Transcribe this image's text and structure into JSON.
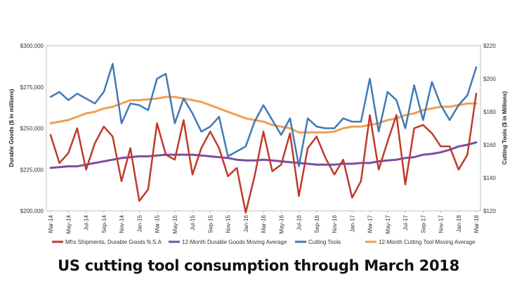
{
  "caption": "US cutting tool consumption through March 2018",
  "chart_data": {
    "type": "line",
    "x_labels": [
      "Mar-14",
      "May-14",
      "Jul-14",
      "Sep-14",
      "Nov-14",
      "Jan-15",
      "Mar-15",
      "May-15",
      "Jul-15",
      "Sep-15",
      "Nov-15",
      "Jan-16",
      "Mar-16",
      "May-16",
      "Jul-16",
      "Sep-16",
      "Nov-16",
      "Jan-17",
      "Mar-17",
      "May-17",
      "Jul-17",
      "Sep-17",
      "Nov-17",
      "Jan-18",
      "Mar-18"
    ],
    "months": [
      "Mar-14",
      "Apr-14",
      "May-14",
      "Jun-14",
      "Jul-14",
      "Aug-14",
      "Sep-14",
      "Oct-14",
      "Nov-14",
      "Dec-14",
      "Jan-15",
      "Feb-15",
      "Mar-15",
      "Apr-15",
      "May-15",
      "Jun-15",
      "Jul-15",
      "Aug-15",
      "Sep-15",
      "Oct-15",
      "Nov-15",
      "Dec-15",
      "Jan-16",
      "Feb-16",
      "Mar-16",
      "Apr-16",
      "May-16",
      "Jun-16",
      "Jul-16",
      "Aug-16",
      "Sep-16",
      "Oct-16",
      "Nov-16",
      "Dec-16",
      "Jan-17",
      "Feb-17",
      "Mar-17",
      "Apr-17",
      "May-17",
      "Jun-17",
      "Jul-17",
      "Aug-17",
      "Sep-17",
      "Oct-17",
      "Nov-17",
      "Dec-17",
      "Jan-18",
      "Feb-18",
      "Mar-18"
    ],
    "y_left": {
      "label": "Durable Goods ($ in millions)",
      "range": [
        200000,
        300000
      ],
      "ticks": [
        "$200,000",
        "$225,000",
        "$250,000",
        "$275,000",
        "$300,000"
      ]
    },
    "y_right": {
      "label": "Cutting Tools ($ in Millions)",
      "range": [
        120,
        220
      ],
      "ticks": [
        "$120",
        "$140",
        "$160",
        "$180",
        "$200",
        "$220"
      ]
    },
    "grid": false,
    "legend_position": "bottom",
    "series": [
      {
        "name": "Mfrs Shipments, Durable Goods N.S.A",
        "axis": "left",
        "color": "#c0392b",
        "values": [
          246000,
          229000,
          235000,
          250000,
          225000,
          241000,
          251000,
          245000,
          218000,
          238000,
          206000,
          213000,
          253000,
          234000,
          231000,
          255000,
          222000,
          238000,
          248000,
          238000,
          221000,
          226000,
          199000,
          221000,
          248000,
          224000,
          228000,
          247000,
          209000,
          238000,
          245000,
          232000,
          222000,
          231000,
          208000,
          218000,
          258000,
          225000,
          242000,
          258000,
          216000,
          250000,
          252000,
          247000,
          239000,
          239000,
          225000,
          234000,
          271000
        ]
      },
      {
        "name": "12-Month Durable Goods Moving Average",
        "axis": "left",
        "color": "#7b4fa0",
        "values": [
          226000,
          226500,
          227000,
          227000,
          228000,
          229000,
          230000,
          231000,
          232000,
          232500,
          233000,
          233000,
          233500,
          234000,
          234000,
          234000,
          234000,
          233500,
          233000,
          232500,
          232000,
          231000,
          230500,
          230500,
          231000,
          230500,
          230000,
          229500,
          229000,
          228500,
          228000,
          228000,
          228000,
          228500,
          228500,
          229000,
          229000,
          230000,
          230500,
          231000,
          232000,
          232500,
          234000,
          234500,
          235500,
          237000,
          239000,
          240000,
          241500
        ]
      },
      {
        "name": "Cutting Tools",
        "axis": "right",
        "color": "#3f7ab5",
        "values": [
          189,
          192,
          187,
          191,
          188,
          185,
          192,
          209,
          173,
          185,
          184,
          181,
          200,
          203,
          173,
          188,
          179,
          168,
          171,
          177,
          153,
          156,
          159,
          174,
          184,
          175,
          166,
          176,
          147,
          176,
          171,
          170,
          170,
          176,
          174,
          174,
          200,
          168,
          192,
          187,
          170,
          196,
          175,
          198,
          184,
          175,
          184,
          190,
          207
        ]
      },
      {
        "name": "12-Month Cutting Tool Moving Average",
        "axis": "right",
        "color": "#f0a050",
        "values": [
          173,
          174,
          175,
          177,
          179,
          180,
          182,
          183,
          185,
          187,
          187,
          187.5,
          188,
          189,
          189,
          188,
          187,
          186,
          184,
          182,
          180,
          178,
          176,
          175,
          174,
          172,
          171,
          170,
          167.5,
          167.5,
          167.5,
          167.5,
          168,
          170,
          171,
          171,
          172,
          173,
          175,
          176,
          178,
          179,
          181,
          182,
          183,
          183,
          184,
          185,
          185
        ]
      }
    ]
  }
}
